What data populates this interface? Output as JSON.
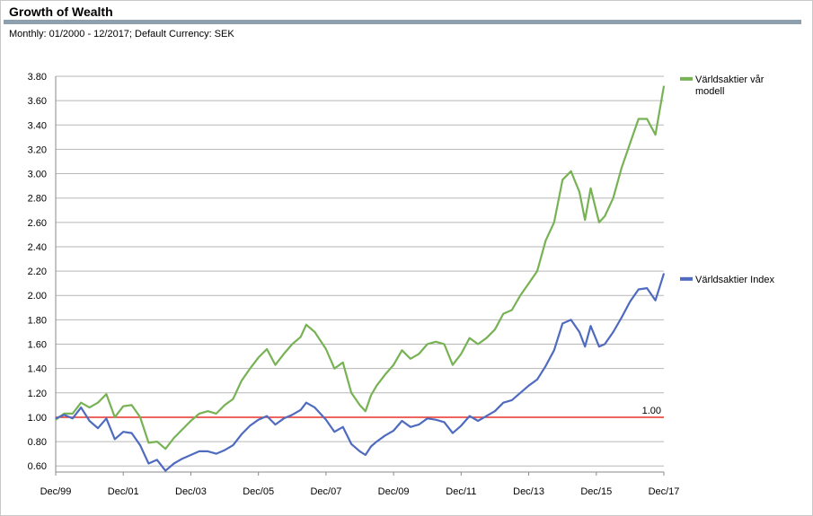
{
  "header": {
    "title": "Growth of Wealth",
    "subtitle": "Monthly: 01/2000 - 12/2017; Default Currency: SEK"
  },
  "chart_data": {
    "type": "line",
    "title": "Growth of Wealth",
    "xlabel": "",
    "ylabel": "",
    "x_range": [
      "1999-12",
      "2017-12"
    ],
    "ylim": [
      0.55,
      3.8
    ],
    "x_ticks": [
      {
        "date": "1999-12",
        "label": "Dec/99"
      },
      {
        "date": "2001-12",
        "label": "Dec/01"
      },
      {
        "date": "2003-12",
        "label": "Dec/03"
      },
      {
        "date": "2005-12",
        "label": "Dec/05"
      },
      {
        "date": "2007-12",
        "label": "Dec/07"
      },
      {
        "date": "2009-12",
        "label": "Dec/09"
      },
      {
        "date": "2011-12",
        "label": "Dec/11"
      },
      {
        "date": "2013-12",
        "label": "Dec/13"
      },
      {
        "date": "2015-12",
        "label": "Dec/15"
      },
      {
        "date": "2017-12",
        "label": "Dec/17"
      }
    ],
    "y_ticks": [
      "0.60",
      "0.80",
      "1.00",
      "1.20",
      "1.40",
      "1.60",
      "1.80",
      "2.00",
      "2.20",
      "2.40",
      "2.60",
      "2.80",
      "3.00",
      "3.20",
      "3.40",
      "3.60",
      "3.80"
    ],
    "grid": true,
    "legend_position": "right",
    "reference_line": {
      "value": 1.0,
      "label": "1.00",
      "color": "#e8302a"
    },
    "series": [
      {
        "name": "Världsaktier vår modell",
        "color": "#77b255",
        "points": [
          [
            "1999-12",
            0.98
          ],
          [
            "2000-03",
            1.03
          ],
          [
            "2000-06",
            1.03
          ],
          [
            "2000-09",
            1.12
          ],
          [
            "2000-12",
            1.08
          ],
          [
            "2001-03",
            1.12
          ],
          [
            "2001-06",
            1.19
          ],
          [
            "2001-09",
            1.0
          ],
          [
            "2001-12",
            1.09
          ],
          [
            "2002-03",
            1.1
          ],
          [
            "2002-06",
            1.0
          ],
          [
            "2002-09",
            0.79
          ],
          [
            "2002-12",
            0.8
          ],
          [
            "2003-03",
            0.74
          ],
          [
            "2003-06",
            0.83
          ],
          [
            "2003-09",
            0.9
          ],
          [
            "2003-12",
            0.97
          ],
          [
            "2004-03",
            1.03
          ],
          [
            "2004-06",
            1.05
          ],
          [
            "2004-09",
            1.03
          ],
          [
            "2004-12",
            1.1
          ],
          [
            "2005-03",
            1.15
          ],
          [
            "2005-06",
            1.3
          ],
          [
            "2005-09",
            1.4
          ],
          [
            "2005-12",
            1.49
          ],
          [
            "2006-03",
            1.56
          ],
          [
            "2006-06",
            1.43
          ],
          [
            "2006-09",
            1.52
          ],
          [
            "2006-12",
            1.6
          ],
          [
            "2007-03",
            1.66
          ],
          [
            "2007-05",
            1.76
          ],
          [
            "2007-08",
            1.7
          ],
          [
            "2007-12",
            1.56
          ],
          [
            "2008-03",
            1.4
          ],
          [
            "2008-06",
            1.45
          ],
          [
            "2008-09",
            1.2
          ],
          [
            "2008-12",
            1.1
          ],
          [
            "2009-02",
            1.05
          ],
          [
            "2009-04",
            1.18
          ],
          [
            "2009-06",
            1.26
          ],
          [
            "2009-09",
            1.35
          ],
          [
            "2009-12",
            1.43
          ],
          [
            "2010-03",
            1.55
          ],
          [
            "2010-06",
            1.48
          ],
          [
            "2010-09",
            1.52
          ],
          [
            "2010-12",
            1.6
          ],
          [
            "2011-03",
            1.62
          ],
          [
            "2011-06",
            1.6
          ],
          [
            "2011-09",
            1.43
          ],
          [
            "2011-12",
            1.52
          ],
          [
            "2012-03",
            1.65
          ],
          [
            "2012-06",
            1.6
          ],
          [
            "2012-09",
            1.65
          ],
          [
            "2012-12",
            1.72
          ],
          [
            "2013-03",
            1.85
          ],
          [
            "2013-06",
            1.88
          ],
          [
            "2013-09",
            2.0
          ],
          [
            "2013-12",
            2.1
          ],
          [
            "2014-03",
            2.2
          ],
          [
            "2014-06",
            2.45
          ],
          [
            "2014-09",
            2.6
          ],
          [
            "2014-12",
            2.95
          ],
          [
            "2015-03",
            3.02
          ],
          [
            "2015-06",
            2.85
          ],
          [
            "2015-08",
            2.62
          ],
          [
            "2015-10",
            2.88
          ],
          [
            "2016-01",
            2.6
          ],
          [
            "2016-03",
            2.65
          ],
          [
            "2016-06",
            2.8
          ],
          [
            "2016-09",
            3.05
          ],
          [
            "2016-12",
            3.25
          ],
          [
            "2017-03",
            3.45
          ],
          [
            "2017-06",
            3.45
          ],
          [
            "2017-09",
            3.32
          ],
          [
            "2017-12",
            3.72
          ]
        ]
      },
      {
        "name": "Världsaktier Index",
        "color": "#4f6bbf",
        "points": [
          [
            "1999-12",
            0.99
          ],
          [
            "2000-03",
            1.02
          ],
          [
            "2000-06",
            0.99
          ],
          [
            "2000-09",
            1.08
          ],
          [
            "2000-12",
            0.97
          ],
          [
            "2001-03",
            0.91
          ],
          [
            "2001-06",
            0.99
          ],
          [
            "2001-09",
            0.82
          ],
          [
            "2001-12",
            0.88
          ],
          [
            "2002-03",
            0.87
          ],
          [
            "2002-06",
            0.77
          ],
          [
            "2002-09",
            0.62
          ],
          [
            "2002-12",
            0.65
          ],
          [
            "2003-03",
            0.56
          ],
          [
            "2003-06",
            0.62
          ],
          [
            "2003-09",
            0.66
          ],
          [
            "2003-12",
            0.69
          ],
          [
            "2004-03",
            0.72
          ],
          [
            "2004-06",
            0.72
          ],
          [
            "2004-09",
            0.7
          ],
          [
            "2004-12",
            0.73
          ],
          [
            "2005-03",
            0.77
          ],
          [
            "2005-06",
            0.86
          ],
          [
            "2005-09",
            0.93
          ],
          [
            "2005-12",
            0.98
          ],
          [
            "2006-03",
            1.01
          ],
          [
            "2006-06",
            0.94
          ],
          [
            "2006-09",
            0.99
          ],
          [
            "2006-12",
            1.02
          ],
          [
            "2007-03",
            1.06
          ],
          [
            "2007-05",
            1.12
          ],
          [
            "2007-08",
            1.08
          ],
          [
            "2007-12",
            0.98
          ],
          [
            "2008-03",
            0.88
          ],
          [
            "2008-06",
            0.92
          ],
          [
            "2008-09",
            0.78
          ],
          [
            "2008-12",
            0.72
          ],
          [
            "2009-02",
            0.69
          ],
          [
            "2009-04",
            0.76
          ],
          [
            "2009-06",
            0.8
          ],
          [
            "2009-09",
            0.85
          ],
          [
            "2009-12",
            0.89
          ],
          [
            "2010-03",
            0.97
          ],
          [
            "2010-06",
            0.92
          ],
          [
            "2010-09",
            0.94
          ],
          [
            "2010-12",
            0.99
          ],
          [
            "2011-03",
            0.98
          ],
          [
            "2011-06",
            0.96
          ],
          [
            "2011-09",
            0.87
          ],
          [
            "2011-12",
            0.93
          ],
          [
            "2012-03",
            1.01
          ],
          [
            "2012-06",
            0.97
          ],
          [
            "2012-09",
            1.01
          ],
          [
            "2012-12",
            1.05
          ],
          [
            "2013-03",
            1.12
          ],
          [
            "2013-06",
            1.14
          ],
          [
            "2013-09",
            1.2
          ],
          [
            "2013-12",
            1.26
          ],
          [
            "2014-03",
            1.31
          ],
          [
            "2014-06",
            1.42
          ],
          [
            "2014-09",
            1.55
          ],
          [
            "2014-12",
            1.77
          ],
          [
            "2015-03",
            1.8
          ],
          [
            "2015-06",
            1.7
          ],
          [
            "2015-08",
            1.58
          ],
          [
            "2015-10",
            1.75
          ],
          [
            "2016-01",
            1.58
          ],
          [
            "2016-03",
            1.6
          ],
          [
            "2016-06",
            1.7
          ],
          [
            "2016-09",
            1.82
          ],
          [
            "2016-12",
            1.95
          ],
          [
            "2017-03",
            2.05
          ],
          [
            "2017-06",
            2.06
          ],
          [
            "2017-09",
            1.96
          ],
          [
            "2017-12",
            2.18
          ]
        ]
      }
    ]
  }
}
